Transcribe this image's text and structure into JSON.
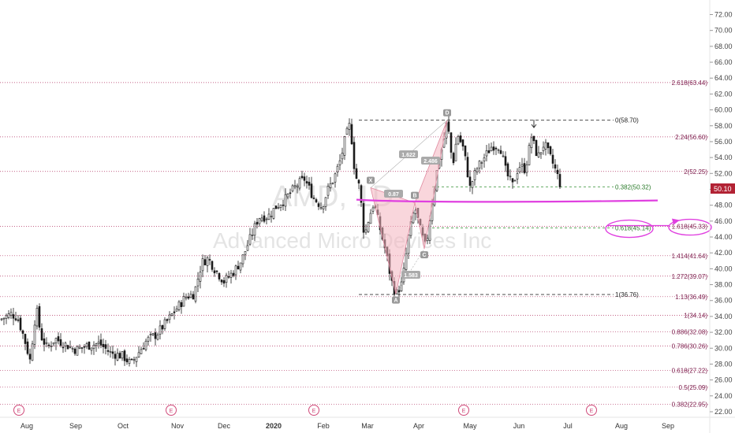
{
  "chart_data": {
    "type": "candlestick",
    "title": "AMD",
    "watermark_symbol": "AMD, 1D",
    "watermark_name": "Advanced Micro Devices Inc",
    "ylim": [
      22,
      73
    ],
    "y_ticks": [
      "22.00",
      "24.00",
      "26.00",
      "28.00",
      "30.00",
      "32.00",
      "34.00",
      "36.00",
      "38.00",
      "40.00",
      "42.00",
      "44.00",
      "46.00",
      "48.00",
      "50.00",
      "52.00",
      "54.00",
      "56.00",
      "58.00",
      "60.00",
      "62.00",
      "64.00",
      "66.00",
      "68.00",
      "70.00",
      "72.00"
    ],
    "x_ticks": [
      "Aug",
      "Sep",
      "Oct",
      "Nov",
      "Dec",
      "2020",
      "Feb",
      "Mar",
      "Apr",
      "May",
      "Jun",
      "Jul",
      "Aug",
      "Sep"
    ],
    "last_price": "50.10",
    "colors": {
      "up": "#1a1a1a",
      "down": "#1a1a1a",
      "fib_line": "#b03060",
      "ab_line": "#333333",
      "pink": "#e040e0",
      "pattern": "#f4b5c0",
      "green": "#2a8a2a"
    },
    "earnings_markers": [
      "E",
      "E",
      "E",
      "E",
      "E"
    ],
    "fib_levels": [
      {
        "label": "2.618(63.44)",
        "value": 63.44
      },
      {
        "label": "2.24(56.60)",
        "value": 56.6
      },
      {
        "label": "2(52.25)",
        "value": 52.25
      },
      {
        "label": "1.618(45.33)",
        "value": 45.33
      },
      {
        "label": "1.414(41.64)",
        "value": 41.64
      },
      {
        "label": "1.272(39.07)",
        "value": 39.07
      },
      {
        "label": "1.13(36.49)",
        "value": 36.49
      },
      {
        "label": "1(34.14)",
        "value": 34.14
      },
      {
        "label": "0.886(32.08)",
        "value": 32.08
      },
      {
        "label": "0.786(30.26)",
        "value": 30.26
      },
      {
        "label": "0.618(27.22)",
        "value": 27.22
      },
      {
        "label": "0.5(25.09)",
        "value": 25.09
      },
      {
        "label": "0.382(22.95)",
        "value": 22.95
      }
    ],
    "ab_levels": [
      {
        "label": "0(58.70)",
        "value": 58.7
      },
      {
        "label": "1(36.76)",
        "value": 36.76
      }
    ],
    "green_levels": [
      {
        "label": "0.382(50.32)",
        "value": 50.32
      },
      {
        "label": "0.618(45.14)",
        "value": 45.14
      }
    ],
    "support_line": 48.5,
    "pattern_points": [
      {
        "name": "X",
        "value": 50.2
      },
      {
        "name": "A",
        "value": 36.8
      },
      {
        "name": "B",
        "value": 48.3
      },
      {
        "name": "C",
        "value": 42.5
      },
      {
        "name": "D",
        "value": 58.7
      }
    ],
    "pattern_ratios": [
      "1.622",
      "0.87",
      "2.486",
      "1.583"
    ],
    "monthly_closes": [
      {
        "month": "Aug",
        "value": 30.5
      },
      {
        "month": "Sep",
        "value": 29.0
      },
      {
        "month": "Oct",
        "value": 28.5
      },
      {
        "month": "Nov",
        "value": 39.2
      },
      {
        "month": "Dec",
        "value": 45.8
      },
      {
        "month": "Jan",
        "value": 47.0
      },
      {
        "month": "Feb",
        "value": 45.5
      },
      {
        "month": "Mar",
        "value": 45.5
      },
      {
        "month": "Apr",
        "value": 52.4
      },
      {
        "month": "May",
        "value": 53.8
      },
      {
        "month": "Jun",
        "value": 52.6
      }
    ],
    "grid": false,
    "legend": "none"
  }
}
